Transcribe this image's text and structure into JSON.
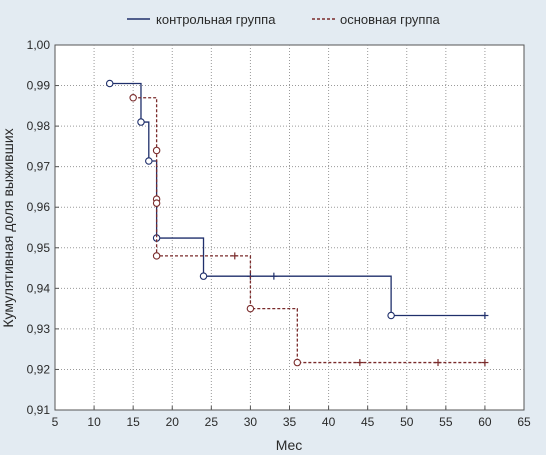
{
  "chart_data": {
    "type": "line",
    "step": true,
    "title": "",
    "xlabel": "Мес",
    "ylabel": "Кумулятивная доля выживших",
    "xlim": [
      5,
      65
    ],
    "ylim": [
      0.91,
      1.0
    ],
    "x_ticks": [
      "5",
      "10",
      "15",
      "20",
      "25",
      "30",
      "35",
      "40",
      "45",
      "50",
      "55",
      "60",
      "65"
    ],
    "y_ticks": [
      "0,91",
      "0,92",
      "0,93",
      "0,94",
      "0,95",
      "0,96",
      "0,97",
      "0,98",
      "0,99",
      "1,00"
    ],
    "grid": true,
    "legend_position": "top",
    "series": [
      {
        "name": "контрольная группа",
        "color": "#1f2f6b",
        "line_style": "solid",
        "steps": [
          [
            12,
            0.9905
          ],
          [
            16,
            0.981
          ],
          [
            17,
            0.9714
          ],
          [
            18,
            0.9524
          ],
          [
            24,
            0.943
          ],
          [
            48,
            0.9333
          ],
          [
            60,
            0.9333
          ]
        ],
        "events": [
          [
            12,
            0.9905
          ],
          [
            16,
            0.981
          ],
          [
            17,
            0.9714
          ],
          [
            18,
            0.9524
          ],
          [
            24,
            0.943
          ],
          [
            48,
            0.9333
          ]
        ],
        "censored": [
          [
            30,
            0.943
          ],
          [
            33,
            0.943
          ],
          [
            60,
            0.9333
          ]
        ]
      },
      {
        "name": "основная группа",
        "color": "#7a2b2b",
        "line_style": "dashed",
        "steps": [
          [
            15,
            0.987
          ],
          [
            18,
            0.948
          ],
          [
            30,
            0.935
          ],
          [
            36,
            0.9217
          ],
          [
            60,
            0.9217
          ]
        ],
        "events": [
          [
            15,
            0.987
          ],
          [
            18,
            0.974
          ],
          [
            18,
            0.962
          ],
          [
            18,
            0.961
          ],
          [
            18,
            0.948
          ],
          [
            30,
            0.935
          ],
          [
            36,
            0.9217
          ]
        ],
        "censored": [
          [
            28,
            0.948
          ],
          [
            44,
            0.9217
          ],
          [
            54,
            0.9217
          ],
          [
            60,
            0.9217
          ]
        ]
      }
    ]
  }
}
